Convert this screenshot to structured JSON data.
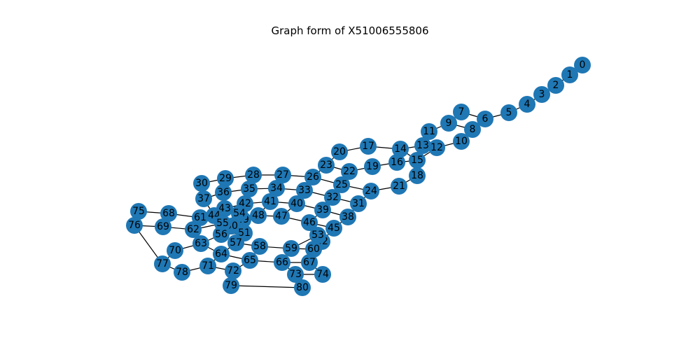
{
  "title": "Graph form of X51006555806",
  "node_color": "#1f77b4",
  "edge_color": "#000000",
  "nodes": [
    "0",
    "1",
    "2",
    "3",
    "4",
    "5",
    "6",
    "7",
    "8",
    "9",
    "10",
    "11",
    "12",
    "13",
    "14",
    "15",
    "16",
    "17",
    "18",
    "19",
    "20",
    "21",
    "22",
    "23",
    "24",
    "25",
    "26",
    "27",
    "28",
    "29",
    "30",
    "31",
    "32",
    "33",
    "34",
    "35",
    "36",
    "37",
    "38",
    "39",
    "40",
    "41",
    "42",
    "43",
    "44",
    "45",
    "46",
    "47",
    "48",
    "49",
    "50",
    "51",
    "52",
    "53",
    "54",
    "55",
    "56",
    "57",
    "58",
    "59",
    "60",
    "61",
    "62",
    "63",
    "64",
    "65",
    "66",
    "67",
    "68",
    "69",
    "70",
    "71",
    "72",
    "73",
    "74",
    "75",
    "76",
    "77",
    "78",
    "79",
    "80"
  ],
  "edges": [
    [
      "0",
      "1"
    ],
    [
      "1",
      "2"
    ],
    [
      "2",
      "3"
    ],
    [
      "3",
      "4"
    ],
    [
      "4",
      "5"
    ],
    [
      "5",
      "6"
    ],
    [
      "6",
      "7"
    ],
    [
      "6",
      "8"
    ],
    [
      "7",
      "9"
    ],
    [
      "8",
      "9"
    ],
    [
      "8",
      "10"
    ],
    [
      "9",
      "11"
    ],
    [
      "10",
      "12"
    ],
    [
      "11",
      "13"
    ],
    [
      "12",
      "13"
    ],
    [
      "12",
      "15"
    ],
    [
      "13",
      "14"
    ],
    [
      "14",
      "15"
    ],
    [
      "14",
      "17"
    ],
    [
      "15",
      "16"
    ],
    [
      "15",
      "18"
    ],
    [
      "16",
      "19"
    ],
    [
      "17",
      "20"
    ],
    [
      "18",
      "21"
    ],
    [
      "19",
      "22"
    ],
    [
      "20",
      "23"
    ],
    [
      "21",
      "24"
    ],
    [
      "22",
      "23"
    ],
    [
      "22",
      "25"
    ],
    [
      "23",
      "26"
    ],
    [
      "24",
      "25"
    ],
    [
      "24",
      "31"
    ],
    [
      "25",
      "26"
    ],
    [
      "25",
      "32"
    ],
    [
      "26",
      "27"
    ],
    [
      "26",
      "33"
    ],
    [
      "27",
      "28"
    ],
    [
      "27",
      "34"
    ],
    [
      "28",
      "29"
    ],
    [
      "28",
      "35"
    ],
    [
      "29",
      "30"
    ],
    [
      "29",
      "36"
    ],
    [
      "30",
      "37"
    ],
    [
      "31",
      "32"
    ],
    [
      "31",
      "38"
    ],
    [
      "32",
      "33"
    ],
    [
      "32",
      "39"
    ],
    [
      "33",
      "34"
    ],
    [
      "33",
      "40"
    ],
    [
      "34",
      "35"
    ],
    [
      "34",
      "41"
    ],
    [
      "35",
      "36"
    ],
    [
      "35",
      "42"
    ],
    [
      "36",
      "37"
    ],
    [
      "36",
      "43"
    ],
    [
      "37",
      "44"
    ],
    [
      "38",
      "39"
    ],
    [
      "38",
      "45"
    ],
    [
      "39",
      "40"
    ],
    [
      "39",
      "46"
    ],
    [
      "40",
      "41"
    ],
    [
      "40",
      "47"
    ],
    [
      "41",
      "42"
    ],
    [
      "41",
      "48"
    ],
    [
      "42",
      "43"
    ],
    [
      "42",
      "54"
    ],
    [
      "43",
      "44"
    ],
    [
      "43",
      "55"
    ],
    [
      "44",
      "61"
    ],
    [
      "45",
      "46"
    ],
    [
      "45",
      "52"
    ],
    [
      "46",
      "47"
    ],
    [
      "46",
      "53"
    ],
    [
      "47",
      "48"
    ],
    [
      "48",
      "49"
    ],
    [
      "49",
      "54"
    ],
    [
      "49",
      "50"
    ],
    [
      "50",
      "55"
    ],
    [
      "50",
      "51"
    ],
    [
      "51",
      "56"
    ],
    [
      "51",
      "57"
    ],
    [
      "52",
      "53"
    ],
    [
      "52",
      "60"
    ],
    [
      "53",
      "59"
    ],
    [
      "54",
      "55"
    ],
    [
      "55",
      "62"
    ],
    [
      "56",
      "63"
    ],
    [
      "57",
      "58"
    ],
    [
      "57",
      "64"
    ],
    [
      "58",
      "59"
    ],
    [
      "58",
      "65"
    ],
    [
      "59",
      "60"
    ],
    [
      "59",
      "66"
    ],
    [
      "60",
      "67"
    ],
    [
      "61",
      "62"
    ],
    [
      "61",
      "68"
    ],
    [
      "62",
      "63"
    ],
    [
      "62",
      "69"
    ],
    [
      "63",
      "64"
    ],
    [
      "63",
      "70"
    ],
    [
      "64",
      "65"
    ],
    [
      "64",
      "71"
    ],
    [
      "65",
      "66"
    ],
    [
      "65",
      "72"
    ],
    [
      "66",
      "67"
    ],
    [
      "66",
      "73"
    ],
    [
      "67",
      "74"
    ],
    [
      "68",
      "75"
    ],
    [
      "69",
      "76"
    ],
    [
      "70",
      "77"
    ],
    [
      "71",
      "72"
    ],
    [
      "71",
      "78"
    ],
    [
      "72",
      "79"
    ],
    [
      "73",
      "74"
    ],
    [
      "73",
      "80"
    ],
    [
      "75",
      "76"
    ],
    [
      "76",
      "77"
    ],
    [
      "77",
      "78"
    ],
    [
      "79",
      "80"
    ]
  ]
}
